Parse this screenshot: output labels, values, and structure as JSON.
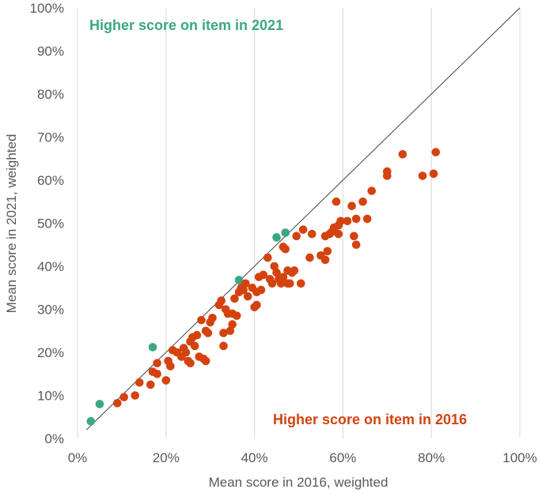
{
  "chart_data": {
    "type": "scatter",
    "title": "",
    "xlabel": "Mean score in 2016, weighted",
    "ylabel": "Mean score in 2021, weighted",
    "xlim": [
      0,
      1
    ],
    "ylim": [
      0,
      1
    ],
    "x_ticks": [
      "0%",
      "20%",
      "40%",
      "60%",
      "80%",
      "100%"
    ],
    "y_ticks": [
      "0%",
      "10%",
      "20%",
      "30%",
      "40%",
      "50%",
      "60%",
      "70%",
      "80%",
      "90%",
      "100%"
    ],
    "grid": "vertical gridlines only",
    "reference_line": {
      "from": [
        0.02,
        0.02
      ],
      "to": [
        1.0,
        1.0
      ]
    },
    "annotations": {
      "top_left": "Higher score on item in 2021",
      "bottom_right": "Higher score on item in 2016"
    },
    "colors": {
      "higher_2021": "#3aa882",
      "higher_2016": "#d4430f",
      "reference_line": "#404040",
      "gridline": "#d9d9d9",
      "tick_text": "#595959"
    },
    "series": [
      {
        "key": "higher_2021",
        "color": "#3aa882",
        "points": [
          [
            0.03,
            0.04
          ],
          [
            0.05,
            0.08
          ],
          [
            0.17,
            0.212
          ],
          [
            0.365,
            0.368
          ],
          [
            0.45,
            0.467
          ],
          [
            0.47,
            0.478
          ]
        ]
      },
      {
        "key": "higher_2016",
        "color": "#d4430f",
        "points": [
          [
            0.09,
            0.082
          ],
          [
            0.105,
            0.096
          ],
          [
            0.13,
            0.1
          ],
          [
            0.14,
            0.13
          ],
          [
            0.165,
            0.125
          ],
          [
            0.17,
            0.155
          ],
          [
            0.18,
            0.15
          ],
          [
            0.18,
            0.175
          ],
          [
            0.2,
            0.135
          ],
          [
            0.205,
            0.18
          ],
          [
            0.21,
            0.168
          ],
          [
            0.215,
            0.205
          ],
          [
            0.225,
            0.2
          ],
          [
            0.235,
            0.19
          ],
          [
            0.24,
            0.21
          ],
          [
            0.245,
            0.2
          ],
          [
            0.25,
            0.18
          ],
          [
            0.255,
            0.175
          ],
          [
            0.255,
            0.225
          ],
          [
            0.26,
            0.235
          ],
          [
            0.265,
            0.215
          ],
          [
            0.27,
            0.24
          ],
          [
            0.275,
            0.19
          ],
          [
            0.28,
            0.275
          ],
          [
            0.285,
            0.185
          ],
          [
            0.29,
            0.18
          ],
          [
            0.29,
            0.25
          ],
          [
            0.295,
            0.245
          ],
          [
            0.3,
            0.27
          ],
          [
            0.305,
            0.28
          ],
          [
            0.32,
            0.31
          ],
          [
            0.325,
            0.32
          ],
          [
            0.33,
            0.215
          ],
          [
            0.33,
            0.245
          ],
          [
            0.335,
            0.3
          ],
          [
            0.34,
            0.29
          ],
          [
            0.345,
            0.25
          ],
          [
            0.35,
            0.265
          ],
          [
            0.35,
            0.29
          ],
          [
            0.355,
            0.325
          ],
          [
            0.36,
            0.285
          ],
          [
            0.365,
            0.34
          ],
          [
            0.37,
            0.35
          ],
          [
            0.375,
            0.345
          ],
          [
            0.38,
            0.36
          ],
          [
            0.385,
            0.33
          ],
          [
            0.395,
            0.35
          ],
          [
            0.4,
            0.305
          ],
          [
            0.405,
            0.34
          ],
          [
            0.405,
            0.31
          ],
          [
            0.41,
            0.375
          ],
          [
            0.415,
            0.345
          ],
          [
            0.42,
            0.38
          ],
          [
            0.43,
            0.42
          ],
          [
            0.435,
            0.37
          ],
          [
            0.44,
            0.36
          ],
          [
            0.445,
            0.4
          ],
          [
            0.45,
            0.385
          ],
          [
            0.455,
            0.37
          ],
          [
            0.46,
            0.36
          ],
          [
            0.465,
            0.445
          ],
          [
            0.465,
            0.375
          ],
          [
            0.47,
            0.44
          ],
          [
            0.475,
            0.39
          ],
          [
            0.475,
            0.36
          ],
          [
            0.48,
            0.36
          ],
          [
            0.485,
            0.385
          ],
          [
            0.49,
            0.39
          ],
          [
            0.495,
            0.47
          ],
          [
            0.505,
            0.36
          ],
          [
            0.51,
            0.485
          ],
          [
            0.525,
            0.42
          ],
          [
            0.53,
            0.475
          ],
          [
            0.55,
            0.425
          ],
          [
            0.56,
            0.415
          ],
          [
            0.56,
            0.47
          ],
          [
            0.565,
            0.435
          ],
          [
            0.57,
            0.475
          ],
          [
            0.575,
            0.48
          ],
          [
            0.58,
            0.49
          ],
          [
            0.585,
            0.55
          ],
          [
            0.59,
            0.495
          ],
          [
            0.59,
            0.475
          ],
          [
            0.595,
            0.505
          ],
          [
            0.61,
            0.505
          ],
          [
            0.62,
            0.54
          ],
          [
            0.625,
            0.47
          ],
          [
            0.63,
            0.45
          ],
          [
            0.63,
            0.51
          ],
          [
            0.645,
            0.55
          ],
          [
            0.655,
            0.51
          ],
          [
            0.665,
            0.575
          ],
          [
            0.7,
            0.61
          ],
          [
            0.7,
            0.62
          ],
          [
            0.735,
            0.66
          ],
          [
            0.78,
            0.61
          ],
          [
            0.805,
            0.615
          ],
          [
            0.81,
            0.665
          ]
        ]
      }
    ]
  }
}
